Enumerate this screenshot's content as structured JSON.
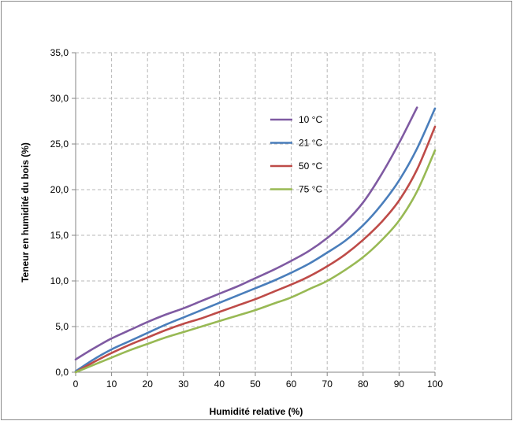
{
  "chart_data": {
    "type": "line",
    "title": "",
    "xlabel": "Humidité relative (%)",
    "ylabel": "Teneur en humidité du bois (%)",
    "xlim": [
      0,
      100
    ],
    "ylim": [
      0,
      35
    ],
    "x_ticks": [
      0,
      10,
      20,
      30,
      40,
      50,
      60,
      70,
      80,
      90,
      100
    ],
    "y_ticks": [
      "0,0",
      "5,0",
      "10,0",
      "15,0",
      "20,0",
      "25,0",
      "30,0",
      "35,0"
    ],
    "grid": true,
    "legend_position": "upper-center",
    "series": [
      {
        "name": "10 °C",
        "color": "#7f5aa2",
        "x": [
          0,
          5,
          10,
          15,
          20,
          25,
          30,
          35,
          40,
          45,
          50,
          55,
          60,
          65,
          70,
          75,
          80,
          85,
          90,
          95
        ],
        "y": [
          1.4,
          2.6,
          3.7,
          4.6,
          5.5,
          6.3,
          7.0,
          7.8,
          8.6,
          9.4,
          10.3,
          11.2,
          12.2,
          13.3,
          14.7,
          16.4,
          18.6,
          21.6,
          25.1,
          29.0
        ]
      },
      {
        "name": "21 °C",
        "color": "#4a7ebb",
        "x": [
          0,
          5,
          10,
          15,
          20,
          25,
          30,
          35,
          40,
          45,
          50,
          55,
          60,
          65,
          70,
          75,
          80,
          85,
          90,
          95,
          100
        ],
        "y": [
          0.1,
          1.4,
          2.5,
          3.4,
          4.3,
          5.2,
          6.0,
          6.8,
          7.6,
          8.4,
          9.2,
          10.0,
          10.9,
          11.9,
          13.1,
          14.4,
          16.1,
          18.3,
          21.0,
          24.5,
          28.9
        ]
      },
      {
        "name": "50 °C",
        "color": "#be4b48",
        "x": [
          0,
          5,
          10,
          15,
          20,
          25,
          30,
          35,
          40,
          45,
          50,
          55,
          60,
          65,
          70,
          75,
          80,
          85,
          90,
          95,
          100
        ],
        "y": [
          0.0,
          1.1,
          2.1,
          3.0,
          3.8,
          4.6,
          5.3,
          5.9,
          6.6,
          7.3,
          8.0,
          8.8,
          9.6,
          10.5,
          11.6,
          12.9,
          14.5,
          16.4,
          18.8,
          22.2,
          26.9
        ]
      },
      {
        "name": "75 °C",
        "color": "#98b954",
        "x": [
          0,
          5,
          10,
          15,
          20,
          25,
          30,
          35,
          40,
          45,
          50,
          55,
          60,
          65,
          70,
          75,
          80,
          85,
          90,
          95,
          100
        ],
        "y": [
          0.0,
          0.8,
          1.6,
          2.4,
          3.1,
          3.8,
          4.4,
          5.0,
          5.6,
          6.2,
          6.8,
          7.5,
          8.2,
          9.1,
          10.0,
          11.2,
          12.6,
          14.4,
          16.6,
          19.8,
          24.3
        ]
      }
    ]
  }
}
